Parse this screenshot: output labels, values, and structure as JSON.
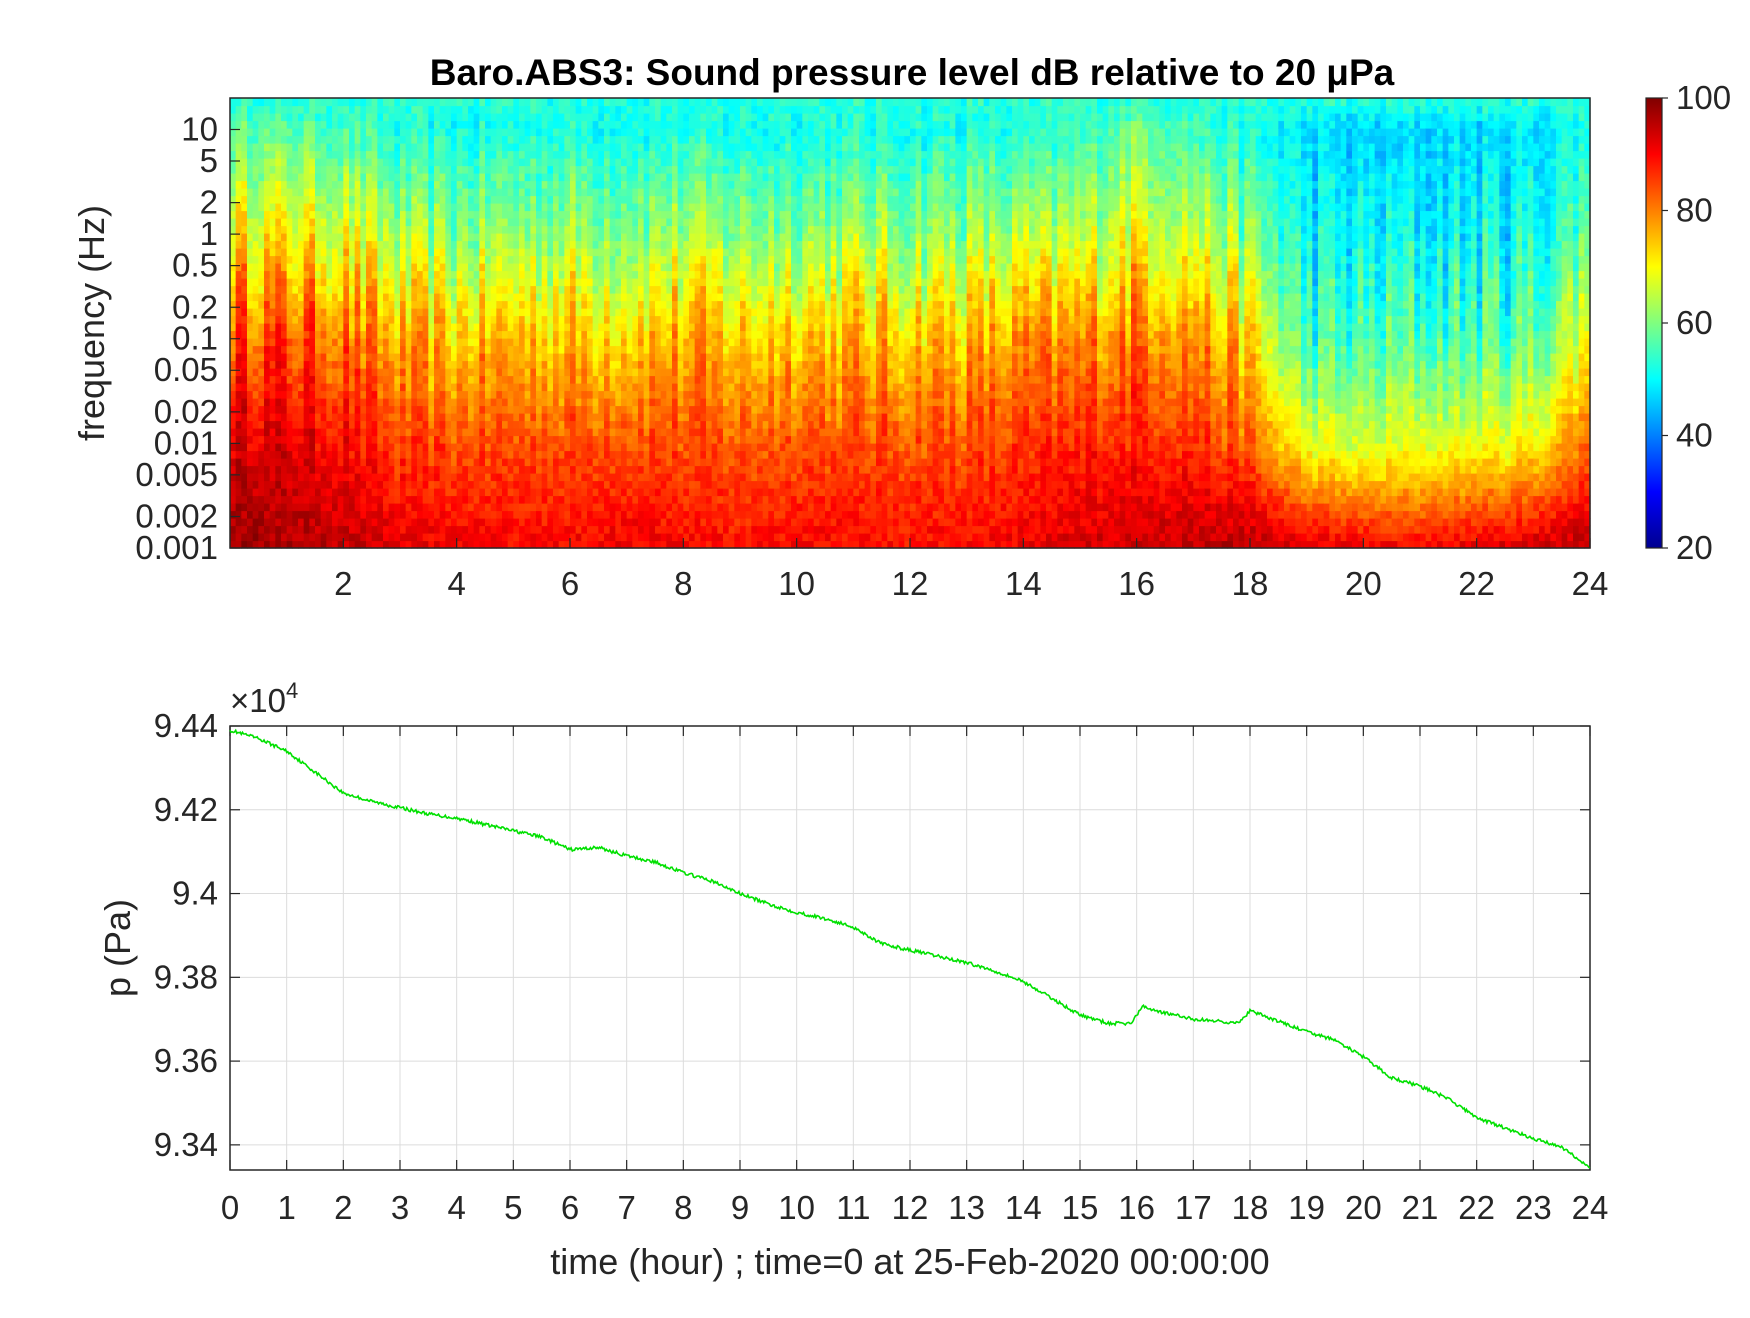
{
  "chart_data": [
    {
      "type": "heatmap",
      "title": "Baro.ABS3: Sound pressure level dB relative to 20 μPa",
      "xlabel": "",
      "ylabel": "frequency (Hz)",
      "xlim": [
        0,
        24
      ],
      "x_ticks": [
        "2",
        "4",
        "6",
        "8",
        "10",
        "12",
        "14",
        "16",
        "18",
        "20",
        "22",
        "24"
      ],
      "x_tick_values": [
        2,
        4,
        6,
        8,
        10,
        12,
        14,
        16,
        18,
        20,
        22,
        24
      ],
      "ylim": [
        0.001,
        20
      ],
      "y_scale": "log",
      "y_ticks": [
        "0.001",
        "0.002",
        "0.005",
        "0.01",
        "0.02",
        "0.05",
        "0.1",
        "0.2",
        "0.5",
        "1",
        "2",
        "5",
        "10"
      ],
      "y_tick_values": [
        0.001,
        0.002,
        0.005,
        0.01,
        0.02,
        0.05,
        0.1,
        0.2,
        0.5,
        1,
        2,
        5,
        10
      ],
      "colorbar": {
        "colormap": "jet",
        "range": [
          20,
          100
        ],
        "ticks": [
          "20",
          "40",
          "60",
          "80",
          "100"
        ],
        "tick_values": [
          20,
          40,
          60,
          80,
          100
        ]
      },
      "grid": false,
      "level_profile": {
        "hours": [
          0,
          1,
          2,
          3,
          4,
          5,
          6,
          7,
          8,
          9,
          10,
          11,
          12,
          13,
          14,
          15,
          16,
          17,
          18,
          19,
          20,
          21,
          22,
          23,
          24
        ],
        "dB_at_0_001Hz": [
          98,
          97,
          95,
          92,
          91,
          90,
          90,
          91,
          90,
          89,
          90,
          90,
          89,
          90,
          91,
          93,
          94,
          95,
          96,
          93,
          91,
          90,
          92,
          94,
          96
        ],
        "dB_at_0_01Hz": [
          93,
          92,
          90,
          85,
          84,
          84,
          84,
          85,
          84,
          83,
          84,
          84,
          84,
          84,
          85,
          87,
          88,
          87,
          82,
          68,
          66,
          68,
          68,
          70,
          82
        ],
        "dB_at_0_1Hz": [
          85,
          84,
          82,
          75,
          74,
          75,
          75,
          75,
          76,
          74,
          76,
          75,
          75,
          75,
          77,
          78,
          82,
          80,
          72,
          54,
          55,
          56,
          56,
          57,
          70
        ],
        "dB_at_1Hz": [
          72,
          70,
          69,
          62,
          61,
          62,
          63,
          62,
          63,
          61,
          62,
          62,
          62,
          62,
          63,
          64,
          70,
          66,
          60,
          50,
          49,
          50,
          50,
          51,
          58
        ],
        "dB_at_10Hz": [
          58,
          57,
          56,
          52,
          51,
          52,
          52,
          52,
          52,
          51,
          52,
          52,
          52,
          52,
          52,
          53,
          60,
          55,
          52,
          47,
          46,
          47,
          47,
          48,
          52
        ],
        "dB_at_20Hz": [
          53,
          53,
          53,
          53,
          53,
          53,
          53,
          53,
          53,
          53,
          53,
          53,
          53,
          53,
          53,
          53,
          53,
          53,
          53,
          53,
          53,
          53,
          53,
          53,
          53
        ]
      }
    },
    {
      "type": "line",
      "title": "",
      "xlabel": "time (hour) ; time=0 at 25-Feb-2020 00:00:00",
      "ylabel": "p (Pa)",
      "exponent_label": "×10",
      "exponent_power": "4",
      "xlim": [
        0,
        24
      ],
      "ylim": [
        93340,
        94400
      ],
      "x_ticks": [
        "0",
        "1",
        "2",
        "3",
        "4",
        "5",
        "6",
        "7",
        "8",
        "9",
        "10",
        "11",
        "12",
        "13",
        "14",
        "15",
        "16",
        "17",
        "18",
        "19",
        "20",
        "21",
        "22",
        "23",
        "24"
      ],
      "x_tick_values": [
        0,
        1,
        2,
        3,
        4,
        5,
        6,
        7,
        8,
        9,
        10,
        11,
        12,
        13,
        14,
        15,
        16,
        17,
        18,
        19,
        20,
        21,
        22,
        23,
        24
      ],
      "y_ticks": [
        "9.34",
        "9.36",
        "9.38",
        "9.4",
        "9.42",
        "9.44"
      ],
      "y_tick_values": [
        93400,
        93600,
        93800,
        94000,
        94200,
        94400
      ],
      "grid": true,
      "line_color": "#00e000",
      "series": [
        {
          "x": [
            0,
            0.5,
            1,
            1.5,
            2,
            2.5,
            3,
            3.5,
            4,
            4.5,
            5,
            5.5,
            6,
            6.5,
            7,
            7.5,
            8,
            8.5,
            9,
            9.5,
            10,
            10.5,
            11,
            11.5,
            12,
            12.5,
            13,
            13.5,
            14,
            14.5,
            15,
            15.5,
            15.9,
            16.1,
            16.5,
            17,
            17.5,
            17.8,
            18,
            18.5,
            19,
            19.5,
            20,
            20.5,
            21,
            21.5,
            22,
            22.5,
            23,
            23.5,
            24
          ],
          "y": [
            94390,
            94370,
            94340,
            94290,
            94240,
            94220,
            94205,
            94190,
            94180,
            94165,
            94150,
            94135,
            94105,
            94110,
            94090,
            94075,
            94050,
            94030,
            94000,
            93975,
            93955,
            93940,
            93920,
            93880,
            93865,
            93850,
            93835,
            93815,
            93790,
            93750,
            93710,
            93690,
            93690,
            93730,
            93715,
            93700,
            93695,
            93690,
            93720,
            93695,
            93670,
            93650,
            93610,
            93560,
            93540,
            93510,
            93465,
            93440,
            93415,
            93395,
            93345
          ]
        }
      ]
    }
  ]
}
